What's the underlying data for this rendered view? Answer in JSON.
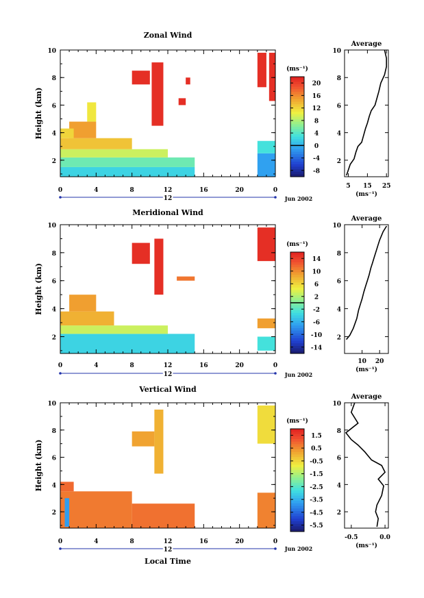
{
  "figure": {
    "date_label": "Jun 2002",
    "xlabel": "Local Time",
    "average_title": "Average",
    "colorbar_unit": "(ms⁻¹)",
    "avg_xunit": "(ms⁻¹)"
  },
  "chart_data": [
    {
      "type": "heatmap",
      "title": "Zonal Wind",
      "ylabel": "Height (km)",
      "unit": "ms^-1",
      "x_ticks": [
        "0",
        "4",
        "8",
        "12",
        "16",
        "20",
        "0"
      ],
      "day_marker": "12",
      "y_ticks": [
        "2",
        "4",
        "6",
        "8",
        "10"
      ],
      "ylim": [
        0.8,
        10
      ],
      "x_range_hours": [
        0,
        24
      ],
      "colorbar_ticks": [
        "20",
        "16",
        "12",
        "8",
        "4",
        "0",
        "-4",
        "-8"
      ],
      "colorbar_range": [
        -10,
        22
      ],
      "zero_line": true,
      "average_profile": {
        "x_ticks": [
          "5",
          "15",
          "25"
        ],
        "xlim": [
          3,
          26
        ],
        "points": [
          [
            4,
            0.9
          ],
          [
            5,
            1.3
          ],
          [
            6,
            1.7
          ],
          [
            8,
            2.1
          ],
          [
            9,
            2.6
          ],
          [
            10,
            3.0
          ],
          [
            12,
            3.3
          ],
          [
            13,
            3.8
          ],
          [
            14,
            4.3
          ],
          [
            15,
            4.7
          ],
          [
            16,
            5.2
          ],
          [
            17,
            5.6
          ],
          [
            19,
            6.0
          ],
          [
            20,
            6.5
          ],
          [
            21,
            7.0
          ],
          [
            22,
            7.6
          ],
          [
            24,
            8.2
          ],
          [
            25,
            8.8
          ],
          [
            25,
            9.4
          ],
          [
            24,
            10.0
          ]
        ]
      },
      "regions": [
        {
          "t0": 0.0,
          "t1": 15.0,
          "h0": 0.8,
          "h1": 1.5,
          "v": 2
        },
        {
          "t0": 0.0,
          "t1": 15.0,
          "h0": 1.5,
          "h1": 2.2,
          "v": 5
        },
        {
          "t0": 0.0,
          "t1": 12.0,
          "h0": 2.2,
          "h1": 2.8,
          "v": 9
        },
        {
          "t0": 0.0,
          "t1": 8.0,
          "h0": 2.8,
          "h1": 3.6,
          "v": 13
        },
        {
          "t0": 1.0,
          "t1": 4.0,
          "h0": 3.6,
          "h1": 4.8,
          "v": 15
        },
        {
          "t0": 0.0,
          "t1": 1.5,
          "h0": 3.6,
          "h1": 4.3,
          "v": 12
        },
        {
          "t0": 3.0,
          "t1": 4.0,
          "h0": 4.8,
          "h1": 6.2,
          "v": 11
        },
        {
          "t0": 8.0,
          "t1": 10.0,
          "h0": 7.5,
          "h1": 8.5,
          "v": 21
        },
        {
          "t0": 10.2,
          "t1": 11.5,
          "h0": 4.5,
          "h1": 9.1,
          "v": 21
        },
        {
          "t0": 13.2,
          "t1": 14.0,
          "h0": 6.0,
          "h1": 6.5,
          "v": 21
        },
        {
          "t0": 14.0,
          "t1": 14.5,
          "h0": 7.5,
          "h1": 8.0,
          "v": 21
        },
        {
          "t0": 22.0,
          "t1": 23.0,
          "h0": 7.3,
          "h1": 9.8,
          "v": 21
        },
        {
          "t0": 23.3,
          "t1": 24.0,
          "h0": 6.3,
          "h1": 9.8,
          "v": 21
        },
        {
          "t0": 22.0,
          "t1": 24.0,
          "h0": 0.8,
          "h1": 2.5,
          "v": -1
        },
        {
          "t0": 22.0,
          "t1": 24.0,
          "h0": 2.5,
          "h1": 3.4,
          "v": 3
        }
      ]
    },
    {
      "type": "heatmap",
      "title": "Meridional Wind",
      "ylabel": "Height (km)",
      "unit": "ms^-1",
      "x_ticks": [
        "0",
        "4",
        "8",
        "12",
        "16",
        "20",
        "0"
      ],
      "day_marker": "12",
      "y_ticks": [
        "2",
        "4",
        "6",
        "8",
        "10"
      ],
      "ylim": [
        0.8,
        10
      ],
      "x_range_hours": [
        0,
        24
      ],
      "colorbar_ticks": [
        "14",
        "10",
        "6",
        "2",
        "-2",
        "-6",
        "-10",
        "-14"
      ],
      "colorbar_range": [
        -16,
        16
      ],
      "zero_line": true,
      "average_profile": {
        "x_ticks": [
          "10",
          "20"
        ],
        "xlim": [
          0,
          25
        ],
        "points": [
          [
            1,
            1.8
          ],
          [
            3,
            2.1
          ],
          [
            5,
            2.6
          ],
          [
            7,
            3.3
          ],
          [
            8,
            3.9
          ],
          [
            9,
            4.3
          ],
          [
            10,
            4.7
          ],
          [
            11,
            5.2
          ],
          [
            12,
            5.6
          ],
          [
            13,
            6.0
          ],
          [
            14,
            6.4
          ],
          [
            15,
            6.9
          ],
          [
            16,
            7.3
          ],
          [
            17,
            7.7
          ],
          [
            18,
            8.1
          ],
          [
            19,
            8.5
          ],
          [
            20,
            8.9
          ],
          [
            21,
            9.2
          ],
          [
            22,
            9.5
          ],
          [
            24,
            9.9
          ]
        ]
      },
      "regions": [
        {
          "t0": 0.0,
          "t1": 15.0,
          "h0": 0.8,
          "h1": 2.2,
          "v": -4
        },
        {
          "t0": 0.0,
          "t1": 12.0,
          "h0": 2.2,
          "h1": 2.8,
          "v": 3
        },
        {
          "t0": 0.0,
          "t1": 6.0,
          "h0": 2.8,
          "h1": 3.8,
          "v": 8
        },
        {
          "t0": 1.0,
          "t1": 4.0,
          "h0": 3.8,
          "h1": 5.0,
          "v": 9
        },
        {
          "t0": 8.0,
          "t1": 10.0,
          "h0": 7.2,
          "h1": 8.7,
          "v": 15
        },
        {
          "t0": 10.5,
          "t1": 11.5,
          "h0": 5.0,
          "h1": 9.0,
          "v": 15
        },
        {
          "t0": 13.0,
          "t1": 15.0,
          "h0": 6.0,
          "h1": 6.3,
          "v": 11
        },
        {
          "t0": 22.0,
          "t1": 24.0,
          "h0": 1.0,
          "h1": 2.0,
          "v": -3
        },
        {
          "t0": 22.0,
          "t1": 24.0,
          "h0": 2.6,
          "h1": 3.3,
          "v": 9
        },
        {
          "t0": 22.0,
          "t1": 24.0,
          "h0": 7.4,
          "h1": 9.8,
          "v": 15
        }
      ]
    },
    {
      "type": "heatmap",
      "title": "Vertical Wind",
      "ylabel": "Height (km)",
      "unit": "ms^-1",
      "x_ticks": [
        "0",
        "4",
        "8",
        "12",
        "16",
        "20",
        "0"
      ],
      "day_marker": "12",
      "y_ticks": [
        "2",
        "4",
        "6",
        "8",
        "10"
      ],
      "ylim": [
        0.8,
        10
      ],
      "x_range_hours": [
        0,
        24
      ],
      "colorbar_ticks": [
        "1.5",
        "0.5",
        "-0.5",
        "-1.5",
        "-2.5",
        "-3.5",
        "-4.5",
        "-5.5"
      ],
      "colorbar_range": [
        -6.0,
        2.0
      ],
      "zero_line": false,
      "average_profile": {
        "x_ticks": [
          "-0.5",
          "0.0"
        ],
        "xlim": [
          -0.6,
          0.05
        ],
        "points": [
          [
            -0.12,
            0.9
          ],
          [
            -0.1,
            1.5
          ],
          [
            -0.14,
            2.0
          ],
          [
            -0.12,
            2.5
          ],
          [
            -0.05,
            3.2
          ],
          [
            -0.02,
            3.9
          ],
          [
            -0.1,
            4.4
          ],
          [
            0.0,
            4.9
          ],
          [
            -0.05,
            5.4
          ],
          [
            -0.2,
            5.8
          ],
          [
            -0.3,
            6.4
          ],
          [
            -0.4,
            6.9
          ],
          [
            -0.5,
            7.3
          ],
          [
            -0.58,
            7.8
          ],
          [
            -0.4,
            8.5
          ],
          [
            -0.5,
            9.3
          ],
          [
            -0.45,
            10.0
          ]
        ]
      },
      "regions": [
        {
          "t0": 0.0,
          "t1": 8.0,
          "h0": 0.8,
          "h1": 3.5,
          "v": 0.7
        },
        {
          "t0": 0.5,
          "t1": 1.0,
          "h0": 0.9,
          "h1": 3.0,
          "v": -3.8
        },
        {
          "t0": 0.0,
          "t1": 1.5,
          "h0": 3.5,
          "h1": 4.2,
          "v": 0.9
        },
        {
          "t0": 8.0,
          "t1": 15.0,
          "h0": 0.8,
          "h1": 2.6,
          "v": 0.8
        },
        {
          "t0": 8.0,
          "t1": 10.5,
          "h0": 6.8,
          "h1": 7.9,
          "v": 0.2
        },
        {
          "t0": 10.5,
          "t1": 11.5,
          "h0": 4.8,
          "h1": 9.5,
          "v": 0.0
        },
        {
          "t0": 22.0,
          "t1": 24.0,
          "h0": 0.8,
          "h1": 3.4,
          "v": 0.6
        },
        {
          "t0": 22.0,
          "t1": 24.0,
          "h0": 7.0,
          "h1": 9.8,
          "v": -0.6
        }
      ]
    }
  ]
}
